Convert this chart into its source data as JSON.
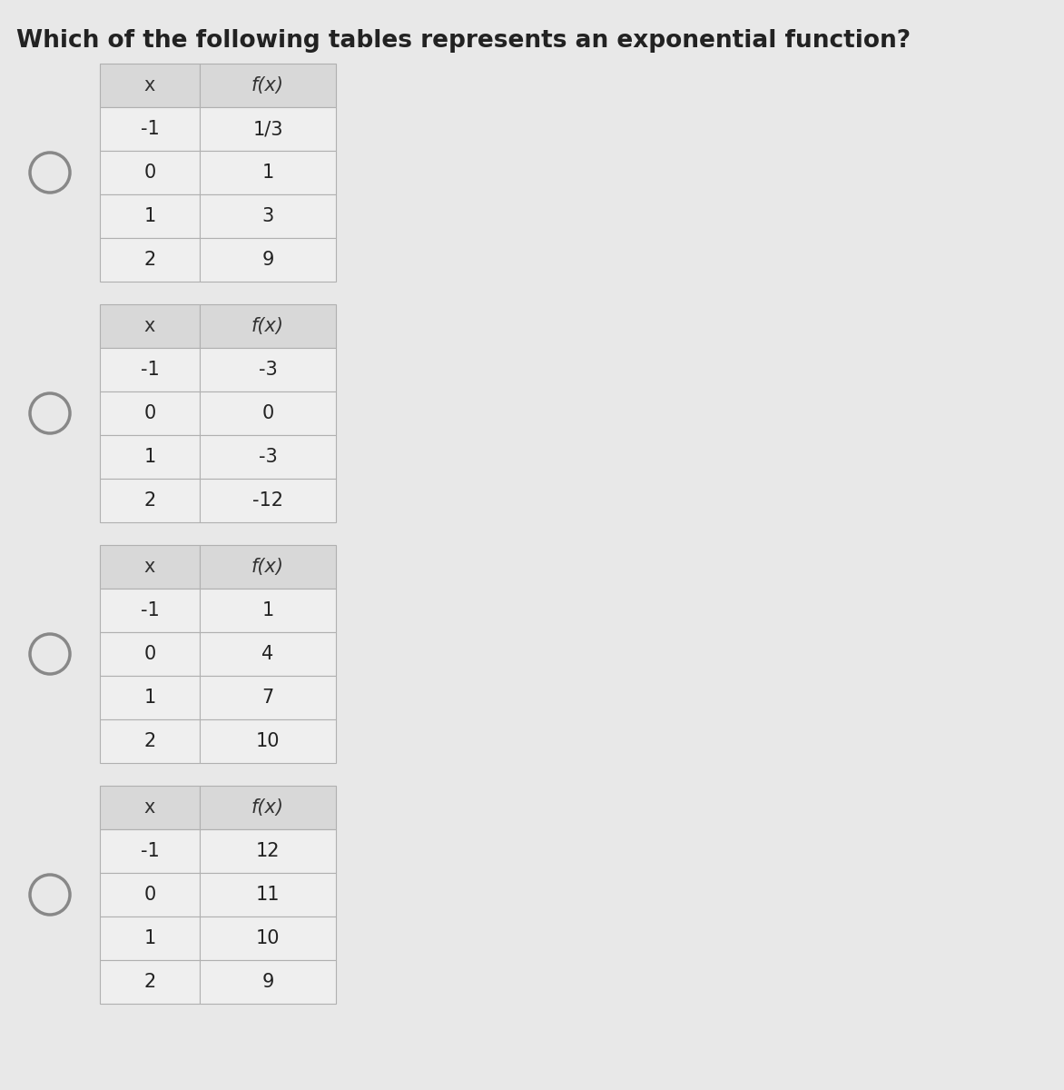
{
  "title": "Which of the following tables represents an exponential function?",
  "title_fontsize": 19,
  "background_color": "#e8e8e8",
  "tables": [
    {
      "headers": [
        "x",
        "f(x)"
      ],
      "rows": [
        [
          "-1",
          "1/3"
        ],
        [
          "0",
          "1"
        ],
        [
          "1",
          "3"
        ],
        [
          "2",
          "9"
        ]
      ]
    },
    {
      "headers": [
        "x",
        "f(x)"
      ],
      "rows": [
        [
          "-1",
          "-3"
        ],
        [
          "0",
          "0"
        ],
        [
          "1",
          "-3"
        ],
        [
          "2",
          "-12"
        ]
      ]
    },
    {
      "headers": [
        "x",
        "f(x)"
      ],
      "rows": [
        [
          "-1",
          "1"
        ],
        [
          "0",
          "4"
        ],
        [
          "1",
          "7"
        ],
        [
          "2",
          "10"
        ]
      ]
    },
    {
      "headers": [
        "x",
        "f(x)"
      ],
      "rows": [
        [
          "-1",
          "12"
        ],
        [
          "0",
          "11"
        ],
        [
          "1",
          "10"
        ],
        [
          "2",
          "9"
        ]
      ]
    }
  ],
  "radio_color": "#888888",
  "table_line_color": "#b0b0b0",
  "header_bg": "#d8d8d8",
  "cell_bg": "#efefef",
  "text_color": "#222222",
  "header_text_color": "#333333"
}
